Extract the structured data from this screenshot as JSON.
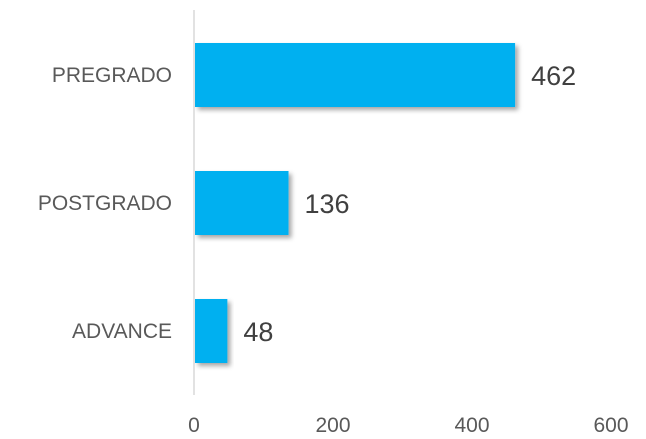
{
  "chart_data": {
    "type": "bar",
    "orientation": "horizontal",
    "title": "",
    "xlabel": "",
    "ylabel": "",
    "categories": [
      "PREGRADO",
      "POSTGRADO",
      "ADVANCE"
    ],
    "values": [
      462,
      136,
      48
    ],
    "value_labels": [
      "462",
      "136",
      "48"
    ],
    "xlim": [
      0,
      600
    ],
    "x_ticks": [
      0,
      200,
      400,
      600
    ],
    "x_tick_labels": [
      "0",
      "200",
      "400",
      "600"
    ],
    "grid": false,
    "legend": "none",
    "colors": {
      "bar": "#00b0f0",
      "axis": "#d9d9d9"
    }
  }
}
